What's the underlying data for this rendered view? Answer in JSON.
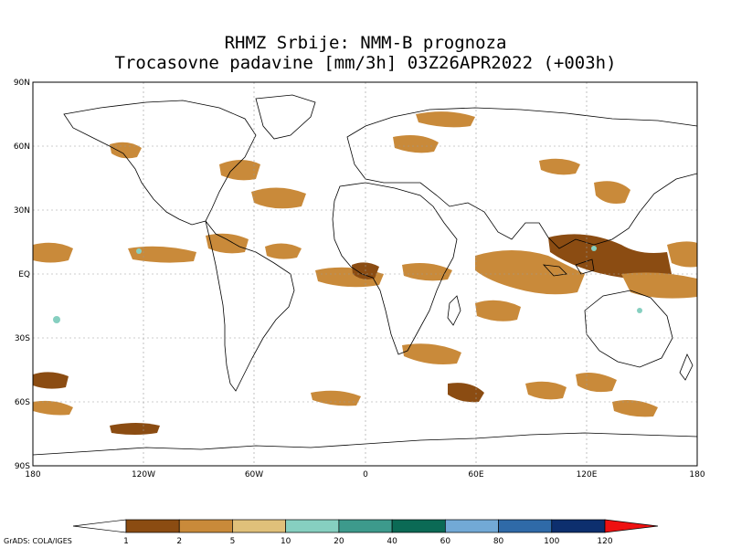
{
  "title": {
    "line1": "RHMZ Srbije: NMM-B prognoza",
    "line2": "Trocasovne padavine [mm/3h] 03Z26APR2022 (+003h)"
  },
  "axes": {
    "lat_ticks": [
      "90N",
      "60N",
      "30N",
      "EQ",
      "30S",
      "60S",
      "90S"
    ],
    "lon_ticks": [
      "180",
      "120W",
      "60W",
      "0",
      "60E",
      "120E",
      "180"
    ]
  },
  "colorbar": {
    "labels": [
      "1",
      "2",
      "5",
      "10",
      "20",
      "40",
      "60",
      "80",
      "100",
      "120"
    ],
    "colors": [
      "#ffffff",
      "#8b4c12",
      "#c98a3a",
      "#e0c07a",
      "#86cfc0",
      "#3d9a8c",
      "#0b6a55",
      "#72a9d6",
      "#2f6aa8",
      "#0d2f6e",
      "#ee1111"
    ]
  },
  "credit": "GrADS: COLA/IGES"
}
